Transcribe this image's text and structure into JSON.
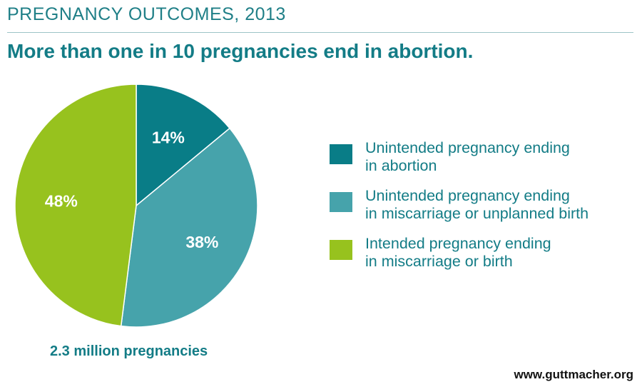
{
  "header": {
    "kicker": "PREGNANCY OUTCOMES, 2013",
    "headline": "More than one in 10 pregnancies end in abortion."
  },
  "caption": "2.3 million pregnancies",
  "footer": {
    "url": "www.guttmacher.org"
  },
  "chart_data": {
    "type": "pie",
    "title": "More than one in 10 pregnancies end in abortion.",
    "total_label": "2.3 million pregnancies",
    "legend_position": "right",
    "slices": [
      {
        "label": "Unintended pregnancy ending in abortion",
        "value": 14,
        "display": "14%",
        "color": "#097d87"
      },
      {
        "label": "Unintended pregnancy ending in miscarriage or unplanned birth",
        "value": 38,
        "display": "38%",
        "color": "#46a3ab"
      },
      {
        "label": "Intended pregnancy ending in miscarriage or birth",
        "value": 48,
        "display": "48%",
        "color": "#97c21e"
      }
    ]
  }
}
